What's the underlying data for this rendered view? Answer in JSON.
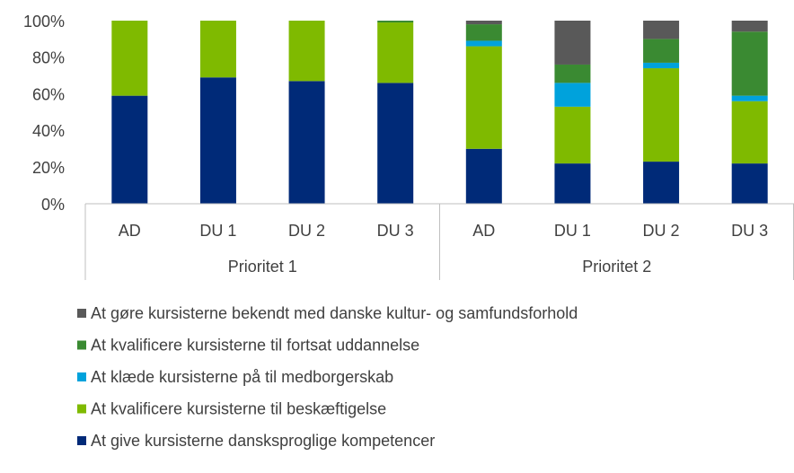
{
  "chart_data": {
    "type": "stacked_bar",
    "categories": [
      "AD",
      "DU 1",
      "DU 2",
      "DU 3",
      "AD",
      "DU 1",
      "DU 2",
      "DU 3"
    ],
    "groups": [
      "Prioritet 1",
      "Prioritet 2"
    ],
    "series": [
      {
        "name": "At give kursisterne dansksproglige kompetencer",
        "color": "#002a78",
        "values": [
          59,
          69,
          67,
          66,
          30,
          22,
          23,
          22
        ]
      },
      {
        "name": "At kvalificere kursisterne til beskæftigelse",
        "color": "#7fba00",
        "values": [
          41,
          31,
          33,
          33,
          56,
          31,
          51,
          34
        ]
      },
      {
        "name": "At klæde kursisterne på til medborgerskab",
        "color": "#00a2dc",
        "values": [
          0,
          0,
          0,
          0,
          3,
          13,
          3,
          3
        ]
      },
      {
        "name": "At kvalificere kursisterne til fortsat uddannelse",
        "color": "#3a8a32",
        "values": [
          0,
          0,
          0,
          1,
          9,
          10,
          13,
          35
        ]
      },
      {
        "name": "At gøre kursisterne bekendt med danske kultur- og samfundsforhold",
        "color": "#595959",
        "values": [
          0,
          0,
          0,
          0,
          2,
          24,
          10,
          6
        ]
      }
    ],
    "ylim": [
      0,
      100
    ],
    "yticks": [
      {
        "value": 0,
        "label": "0%"
      },
      {
        "value": 20,
        "label": "20%"
      },
      {
        "value": 40,
        "label": "40%"
      },
      {
        "value": 60,
        "label": "60%"
      },
      {
        "value": 80,
        "label": "80%"
      },
      {
        "value": 100,
        "label": "100%"
      }
    ]
  }
}
